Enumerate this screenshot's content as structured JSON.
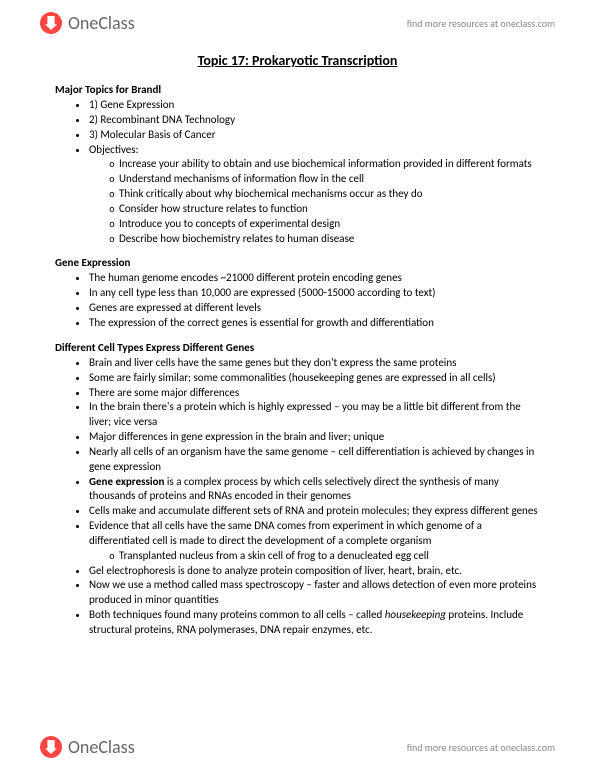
{
  "header": {
    "logo_text": "OneClass",
    "link_text": "find more resources at oneclass.com"
  },
  "title": "Topic 17: Prokaryotic Transcription",
  "sections": [
    {
      "head": "Major Topics for Brandl",
      "items": [
        {
          "t": "1) Gene Expression"
        },
        {
          "t": "2) Recombinant DNA Technology"
        },
        {
          "t": "3) Molecular Basis of Cancer"
        },
        {
          "t": "Objectives:",
          "sub": [
            {
              "t": "Increase your ability to obtain and use biochemical information provided in different formats"
            },
            {
              "t": "Understand mechanisms of information flow in the cell"
            },
            {
              "t": "Think critically about why biochemical mechanisms occur as they do"
            },
            {
              "t": "Consider how structure relates to function"
            },
            {
              "t": "Introduce you to concepts of experimental design"
            },
            {
              "t": "Describe how biochemistry relates to human disease"
            }
          ]
        }
      ]
    },
    {
      "head": "Gene Expression",
      "items": [
        {
          "t": "The human genome encodes ~21000 different protein encoding genes"
        },
        {
          "t": "In any cell type less than 10,000 are expressed (5000-15000 according to text)"
        },
        {
          "t": "Genes are expressed at different levels"
        },
        {
          "t": "The expression of the correct genes is essential for growth and differentiation"
        }
      ]
    },
    {
      "head": "Different Cell Types Express Different Genes",
      "items": [
        {
          "t": "Brain and liver cells have the same genes but they don't express the same proteins"
        },
        {
          "t": "Some are fairly similar; some commonalities (housekeeping genes are expressed in all cells)"
        },
        {
          "t": "There are some major differences"
        },
        {
          "t": "In the brain there's a protein which is highly expressed – you may be a little bit different from the liver; vice versa"
        },
        {
          "t": "Major differences in gene expression in the brain and liver; unique"
        },
        {
          "t": "Nearly all cells of an organism have the same genome – cell differentiation is achieved by changes in gene expression"
        },
        {
          "html": "<span class='bold'>Gene expression</span> is a complex process by which cells selectively direct the synthesis of many thousands of proteins and RNAs encoded in their genomes"
        },
        {
          "t": "Cells make and accumulate different sets of RNA and protein molecules; they express different genes"
        },
        {
          "t": "Evidence that all cells have the same DNA comes from experiment in which genome of a differentiated cell is made to direct the development of a complete organism",
          "sub": [
            {
              "t": "Transplanted nucleus from a skin cell of frog to a denucleated egg cell"
            }
          ]
        },
        {
          "t": "Gel electrophoresis is done to analyze protein composition of liver, heart, brain, etc."
        },
        {
          "t": "Now we use a method called mass spectroscopy – faster and allows detection of even more proteins produced in minor quantities"
        },
        {
          "html": "Both techniques found many proteins common to all cells – called <span class='italic'>housekeeping</span> proteins. Include structural proteins, RNA polymerases, DNA repair enzymes, etc."
        }
      ]
    }
  ]
}
